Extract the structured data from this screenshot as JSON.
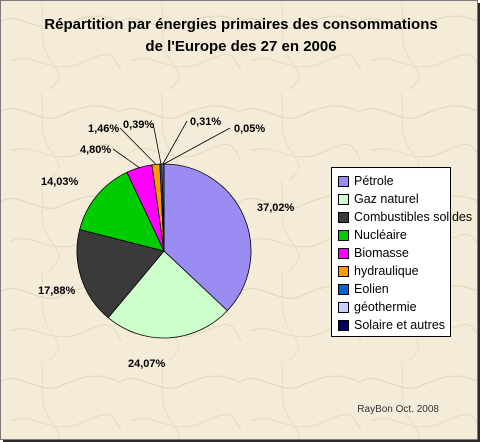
{
  "chart_data": {
    "type": "pie",
    "title_line1": "Répartition par énergies primaires des consommations",
    "title_line2": "de l'Europe des 27 en 2006",
    "categories": [
      "Pétrole",
      "Gaz naturel",
      "Combustibles solides",
      "Nucléaire",
      "Biomasse",
      "hydraulique",
      "Eolien",
      "géothermie",
      "Solaire et autres"
    ],
    "values": [
      37.02,
      24.07,
      17.88,
      14.03,
      4.8,
      1.46,
      0.39,
      0.31,
      0.05
    ],
    "labels": [
      "37,02%",
      "24,07%",
      "17,88%",
      "14,03%",
      "4,80%",
      "1,46%",
      "0,39%",
      "0,31%",
      "0,05%"
    ],
    "colors": [
      "#9a8cf2",
      "#ccffcc",
      "#3a3a3a",
      "#00cc00",
      "#ff00ff",
      "#ff9900",
      "#0066cc",
      "#ccccff",
      "#000066"
    ],
    "legend_position": "right"
  },
  "footer": "RayBon Oct. 2008"
}
